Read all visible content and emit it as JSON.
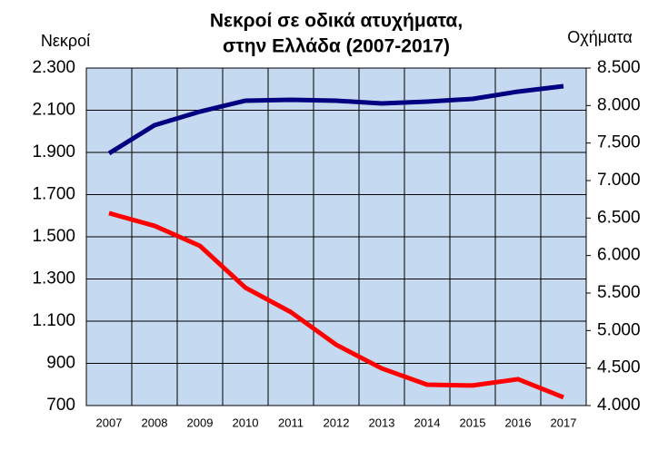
{
  "chart_data": {
    "type": "line",
    "title": [
      "Νεκροί σε οδικά ατυχήματα,",
      "στην Ελλάδα (2007-2017)"
    ],
    "y_label": "Νεκροί",
    "y2_label": "Οχήματα",
    "categories": [
      "2007",
      "2008",
      "2009",
      "2010",
      "2011",
      "2012",
      "2013",
      "2014",
      "2015",
      "2016",
      "2017"
    ],
    "series": [
      {
        "color": "#ff0000",
        "axis": "y",
        "values": [
          1612,
          1552,
          1457,
          1259,
          1143,
          988,
          876,
          799,
          795,
          825,
          739
        ]
      },
      {
        "color": "#000080",
        "axis": "y2",
        "values": [
          7363,
          7738,
          7919,
          8065,
          8077,
          8065,
          8028,
          8052,
          8089,
          8186,
          8258
        ]
      }
    ],
    "ylim": [
      700,
      2300
    ],
    "yticks": [
      {
        "value": 700,
        "label": "700"
      },
      {
        "value": 900,
        "label": "900"
      },
      {
        "value": 1100,
        "label": "1.100"
      },
      {
        "value": 1300,
        "label": "1.300"
      },
      {
        "value": 1500,
        "label": "1.500"
      },
      {
        "value": 1700,
        "label": "1.700"
      },
      {
        "value": 1900,
        "label": "1.900"
      },
      {
        "value": 2100,
        "label": "2.100"
      },
      {
        "value": 2300,
        "label": "2.300"
      }
    ],
    "y2lim": [
      4000,
      8500
    ],
    "y2ticks": [
      {
        "value": 4000,
        "label": "4.000"
      },
      {
        "value": 4500,
        "label": "4.500"
      },
      {
        "value": 5000,
        "label": "5.000"
      },
      {
        "value": 5500,
        "label": "5.500"
      },
      {
        "value": 6000,
        "label": "6.000"
      },
      {
        "value": 6500,
        "label": "6.500"
      },
      {
        "value": 7000,
        "label": "7.000"
      },
      {
        "value": 7500,
        "label": "7.500"
      },
      {
        "value": 8000,
        "label": "8.000"
      },
      {
        "value": 8500,
        "label": "8.500"
      }
    ],
    "grid": true,
    "plot_background": "#c5d9f1"
  }
}
